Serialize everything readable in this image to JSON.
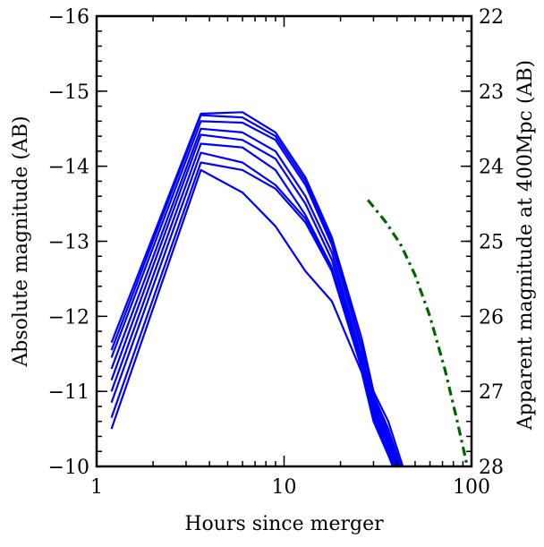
{
  "chart_data": {
    "type": "line",
    "title": "",
    "xlabel": "Hours since merger",
    "ylabel": "Absolute magnitude (AB)",
    "ylabel_right": "Apparent magnitude at 400Mpc (AB)",
    "x_scale": "log",
    "xlim": [
      1,
      100
    ],
    "ylim": [
      -10,
      -16
    ],
    "ylim_right": [
      28,
      22
    ],
    "x_ticks": [
      1,
      10,
      100
    ],
    "x_tick_labels": [
      "1",
      "10",
      "100"
    ],
    "y_ticks": [
      -16,
      -15,
      -14,
      -13,
      -12,
      -11,
      -10
    ],
    "y_tick_labels": [
      "−16",
      "−15",
      "−14",
      "−13",
      "−12",
      "−11",
      "−10"
    ],
    "y_right_ticks": [
      22,
      23,
      24,
      25,
      26,
      27,
      28
    ],
    "y_right_tick_labels": [
      "22",
      "23",
      "24",
      "25",
      "26",
      "27",
      "28"
    ],
    "grid": false,
    "colors": {
      "blue_series": "#0000ff",
      "green_series": "#006400",
      "axes": "#000000"
    },
    "series": [
      {
        "style": "solid",
        "color": "#0000ff",
        "x": [
          1.2,
          3.6,
          6.0,
          9.0,
          13.0,
          18.0,
          26.0,
          30.0,
          36.0,
          43.0
        ],
        "y": [
          -11.65,
          -14.7,
          -14.72,
          -14.45,
          -13.85,
          -13.05,
          -11.7,
          -11.0,
          -10.6,
          -10.0
        ]
      },
      {
        "style": "solid",
        "color": "#0000ff",
        "x": [
          1.2,
          3.6,
          6.0,
          9.0,
          13.0,
          18.0,
          26.0,
          30.0,
          36.0,
          42.0
        ],
        "y": [
          -11.55,
          -14.68,
          -14.65,
          -14.4,
          -13.8,
          -13.0,
          -11.6,
          -10.95,
          -10.5,
          -10.0
        ]
      },
      {
        "style": "solid",
        "color": "#0000ff",
        "x": [
          1.2,
          3.6,
          6.0,
          9.0,
          13.0,
          18.0,
          26.0,
          30.0,
          36.0,
          41.0
        ],
        "y": [
          -11.45,
          -14.6,
          -14.58,
          -14.35,
          -13.75,
          -12.95,
          -11.55,
          -10.9,
          -10.45,
          -10.0
        ]
      },
      {
        "style": "solid",
        "color": "#0000ff",
        "x": [
          1.2,
          3.6,
          6.0,
          9.0,
          13.0,
          18.0,
          26.0,
          30.0,
          36.0,
          40.0
        ],
        "y": [
          -11.3,
          -14.5,
          -14.45,
          -14.2,
          -13.6,
          -12.85,
          -11.45,
          -10.85,
          -10.4,
          -10.0
        ]
      },
      {
        "style": "solid",
        "color": "#0000ff",
        "x": [
          1.2,
          3.6,
          6.0,
          9.0,
          13.0,
          18.0,
          26.0,
          30.0,
          36.0,
          40.0
        ],
        "y": [
          -11.15,
          -14.42,
          -14.35,
          -14.1,
          -13.5,
          -12.75,
          -11.4,
          -10.8,
          -10.35,
          -10.0
        ]
      },
      {
        "style": "solid",
        "color": "#0000ff",
        "x": [
          1.2,
          3.6,
          6.0,
          9.0,
          13.0,
          18.0,
          26.0,
          30.0,
          36.0,
          39.0
        ],
        "y": [
          -11.0,
          -14.3,
          -14.25,
          -13.95,
          -13.35,
          -12.65,
          -11.35,
          -10.75,
          -10.3,
          -10.0
        ]
      },
      {
        "style": "solid",
        "color": "#0000ff",
        "x": [
          1.2,
          3.6,
          6.0,
          9.0,
          13.0,
          18.0,
          26.0,
          30.0,
          36.0,
          39.0
        ],
        "y": [
          -10.85,
          -14.18,
          -14.05,
          -13.75,
          -13.3,
          -12.6,
          -11.3,
          -10.7,
          -10.25,
          -10.0
        ]
      },
      {
        "style": "solid",
        "color": "#0000ff",
        "x": [
          1.2,
          3.6,
          6.0,
          9.0,
          13.0,
          18.0,
          26.0,
          30.0,
          36.0,
          38.0
        ],
        "y": [
          -10.65,
          -14.05,
          -13.95,
          -13.7,
          -13.25,
          -12.6,
          -11.3,
          -10.65,
          -10.2,
          -10.0
        ]
      },
      {
        "style": "solid",
        "color": "#0000ff",
        "x": [
          1.2,
          3.6,
          6.0,
          9.0,
          13.0,
          18.0,
          26.0,
          30.0,
          36.0,
          38.0
        ],
        "y": [
          -10.5,
          -13.95,
          -13.65,
          -13.2,
          -12.6,
          -12.2,
          -11.25,
          -10.6,
          -10.15,
          -10.0
        ]
      },
      {
        "style": "dashdot",
        "color": "#006400",
        "x": [
          28,
          35,
          42,
          50,
          60,
          72,
          84,
          95
        ],
        "y": [
          -13.55,
          -13.25,
          -12.95,
          -12.55,
          -12.0,
          -11.3,
          -10.6,
          -10.0
        ]
      }
    ]
  }
}
